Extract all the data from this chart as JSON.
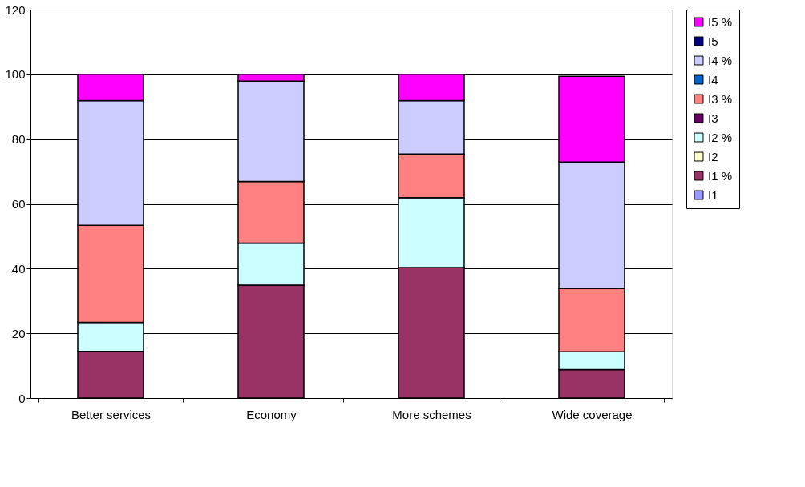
{
  "chart_data": {
    "type": "bar",
    "stacked": true,
    "categories": [
      "Better services",
      "Economy",
      "More schemes",
      "Wide coverage"
    ],
    "ylim": [
      0,
      120
    ],
    "yticks": [
      0,
      20,
      40,
      60,
      80,
      100,
      120
    ],
    "grid": "y",
    "legend": "right",
    "series": [
      {
        "name": "I1",
        "color": "#9999ff",
        "values": [
          0,
          0,
          0,
          0
        ]
      },
      {
        "name": "I1 %",
        "color": "#993366",
        "values": [
          14.4,
          34.9,
          40.3,
          8.8
        ]
      },
      {
        "name": "I2",
        "color": "#ffffcc",
        "values": [
          0,
          0,
          0,
          0
        ]
      },
      {
        "name": "I2 %",
        "color": "#ccffff",
        "values": [
          9.0,
          13.0,
          21.6,
          5.5
        ]
      },
      {
        "name": "I3",
        "color": "#660066",
        "values": [
          0,
          0,
          0,
          0
        ]
      },
      {
        "name": "I3 %",
        "color": "#ff8080",
        "values": [
          30.0,
          19.0,
          13.5,
          19.6
        ]
      },
      {
        "name": "I4",
        "color": "#0066cc",
        "values": [
          0,
          0,
          0,
          0
        ]
      },
      {
        "name": "I4 %",
        "color": "#ccccff",
        "values": [
          38.5,
          31.0,
          16.5,
          39.0
        ]
      },
      {
        "name": "I5",
        "color": "#000080",
        "values": [
          0,
          0,
          0,
          0
        ]
      },
      {
        "name": "I5 %",
        "color": "#ff00ff",
        "values": [
          8.1,
          2.1,
          8.1,
          26.5
        ]
      }
    ]
  }
}
